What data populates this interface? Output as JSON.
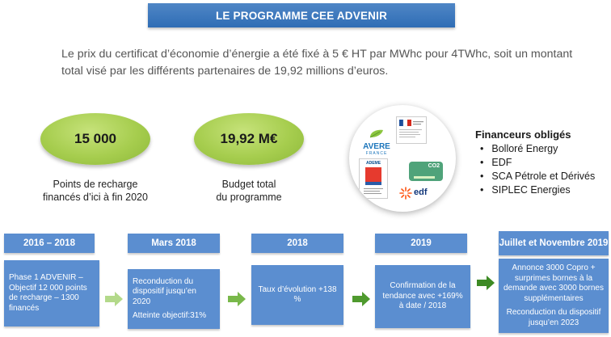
{
  "title": "LE PROGRAMME CEE ADVENIR",
  "intro": "Le prix du certificat d’économie d’énergie a été fixé à 5 € HT par MWhc pour 4TWhc, soit un montant total visé par les différents partenaires de 19,92 millions d’euros.",
  "kpis": [
    {
      "value": "15 000",
      "label_line1": "Points de recharge",
      "label_line2": "financés d’ici à fin 2020"
    },
    {
      "value": "19,92 M€",
      "label_line1": "Budget total",
      "label_line2": "du programme"
    }
  ],
  "logos": {
    "avere": "AVERE",
    "avere_sub": "FRANCE",
    "ademe": "ADEME",
    "co2": "CO2",
    "edf": "edf"
  },
  "financeurs": {
    "title": "Financeurs obligés",
    "items": [
      "Bolloré Energy",
      "EDF",
      "SCA Pétrole et Dérivés",
      "SIPLEC Energies"
    ]
  },
  "timeline": [
    {
      "year": "2016 – 2018",
      "lines": [
        "Phase 1 ADVENIR – Objectif 12 000 points de recharge – 1300 financés"
      ]
    },
    {
      "year": "Mars 2018",
      "lines": [
        "Reconduction du dispositif jusqu’en 2020",
        "Atteinte objectif:31%"
      ]
    },
    {
      "year": "2018",
      "lines": [
        "Taux d’évolution +138 %"
      ]
    },
    {
      "year": "2019",
      "lines": [
        "Confirmation de la tendance avec +169% à date / 2018"
      ]
    },
    {
      "year": "Juillet et Novembre 2019",
      "lines": [
        "Annonce 3000 Copro + surprimes bornes à la demande avec 3000 bornes supplémentaires",
        "Reconduction du dispositif jusqu’en 2023"
      ]
    }
  ],
  "colors": {
    "banner": "#2f6db5",
    "timeline_box": "#5b8ed0",
    "kpi_green": "#a6cd4e",
    "arrow_light": "#b3d98a",
    "arrow_mid": "#79b84a",
    "arrow_dark": "#4f9a2e"
  }
}
